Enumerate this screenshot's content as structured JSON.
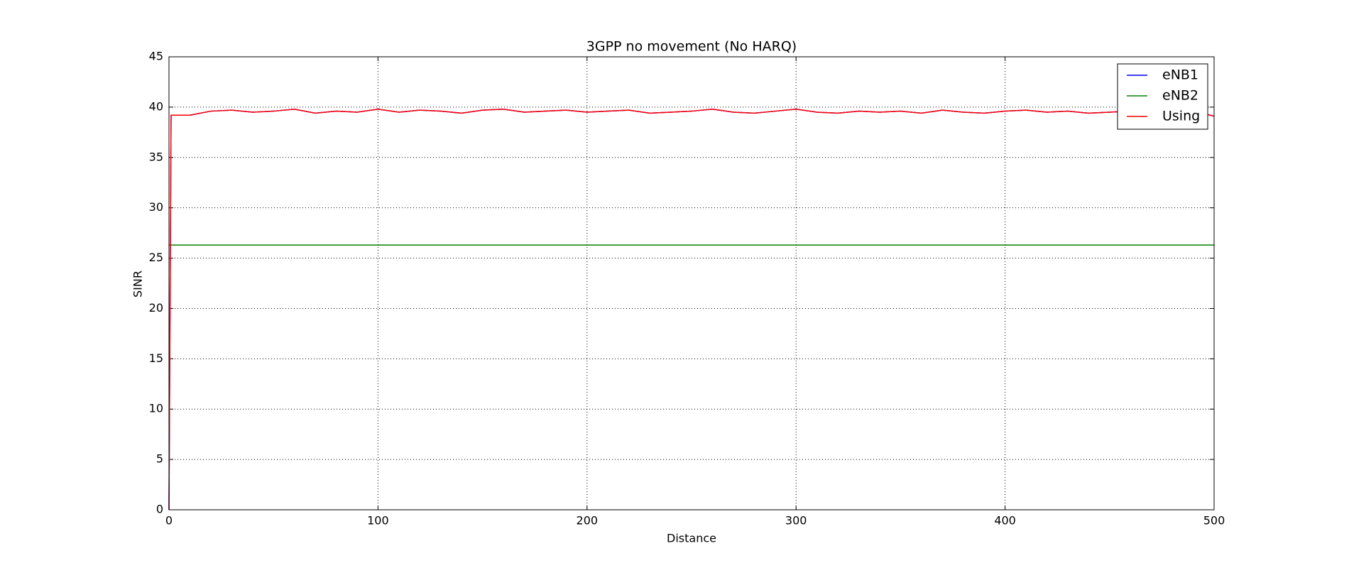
{
  "chart_data": {
    "type": "line",
    "title": "3GPP no movement (No HARQ)",
    "x_label": "Distance",
    "y_label": "SINR",
    "x": [
      0,
      1,
      10,
      20,
      30,
      40,
      50,
      60,
      70,
      80,
      90,
      100,
      110,
      120,
      130,
      140,
      150,
      160,
      170,
      180,
      190,
      200,
      210,
      220,
      230,
      240,
      250,
      260,
      270,
      280,
      290,
      300,
      310,
      320,
      330,
      340,
      350,
      360,
      370,
      380,
      390,
      400,
      410,
      420,
      430,
      440,
      450,
      460,
      470,
      480,
      490,
      500
    ],
    "series": [
      {
        "name": "eNB1",
        "color": "#0000ff",
        "values": [
          0,
          39.2,
          39.2,
          39.6,
          39.7,
          39.5,
          39.6,
          39.8,
          39.4,
          39.6,
          39.5,
          39.8,
          39.5,
          39.7,
          39.6,
          39.4,
          39.7,
          39.8,
          39.5,
          39.6,
          39.7,
          39.5,
          39.6,
          39.7,
          39.4,
          39.5,
          39.6,
          39.8,
          39.5,
          39.4,
          39.6,
          39.8,
          39.5,
          39.4,
          39.6,
          39.5,
          39.6,
          39.4,
          39.7,
          39.5,
          39.4,
          39.6,
          39.7,
          39.5,
          39.6,
          39.4,
          39.5,
          39.6,
          39.5,
          39.4,
          39.6,
          39.1
        ]
      },
      {
        "name": "eNB2",
        "color": "#008000",
        "values": [
          26.3,
          26.3,
          26.3,
          26.3,
          26.3,
          26.3,
          26.3,
          26.3,
          26.3,
          26.3,
          26.3,
          26.3,
          26.3,
          26.3,
          26.3,
          26.3,
          26.3,
          26.3,
          26.3,
          26.3,
          26.3,
          26.3,
          26.3,
          26.3,
          26.3,
          26.3,
          26.3,
          26.3,
          26.3,
          26.3,
          26.3,
          26.3,
          26.3,
          26.3,
          26.3,
          26.3,
          26.3,
          26.3,
          26.3,
          26.3,
          26.3,
          26.3,
          26.3,
          26.3,
          26.3,
          26.3,
          26.3,
          26.3,
          26.3,
          26.3,
          26.3,
          26.3
        ]
      },
      {
        "name": "Using",
        "color": "#ff0000",
        "values": [
          0,
          39.2,
          39.2,
          39.6,
          39.7,
          39.5,
          39.6,
          39.8,
          39.4,
          39.6,
          39.5,
          39.8,
          39.5,
          39.7,
          39.6,
          39.4,
          39.7,
          39.8,
          39.5,
          39.6,
          39.7,
          39.5,
          39.6,
          39.7,
          39.4,
          39.5,
          39.6,
          39.8,
          39.5,
          39.4,
          39.6,
          39.8,
          39.5,
          39.4,
          39.6,
          39.5,
          39.6,
          39.4,
          39.7,
          39.5,
          39.4,
          39.6,
          39.7,
          39.5,
          39.6,
          39.4,
          39.5,
          39.6,
          39.5,
          39.4,
          39.6,
          39.1
        ]
      }
    ],
    "xlim": [
      0,
      500
    ],
    "xticks": [
      0,
      100,
      200,
      300,
      400,
      500
    ],
    "ylim": [
      0,
      45
    ],
    "yticks": [
      0,
      5,
      10,
      15,
      20,
      25,
      30,
      35,
      40,
      45
    ],
    "grid": true,
    "legend": "upper right"
  }
}
